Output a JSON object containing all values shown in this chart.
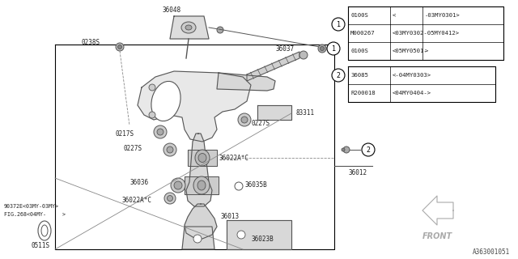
{
  "bg_color": "#ffffff",
  "line_color": "#000000",
  "gray": "#888888",
  "dark_gray": "#555555",
  "table1_rows": [
    [
      "0100S",
      "<",
      "-03MY0301>"
    ],
    [
      "M000267",
      "<03MY0302-05MY0412>",
      ""
    ],
    [
      "0100S",
      "<05MY0501-",
      ">"
    ]
  ],
  "table2_rows": [
    [
      "36085",
      "<",
      "-04MY0303>"
    ],
    [
      "R200018",
      "<04MY0404-",
      ">"
    ]
  ],
  "footer": "A363001051",
  "front_text": "FRONT"
}
